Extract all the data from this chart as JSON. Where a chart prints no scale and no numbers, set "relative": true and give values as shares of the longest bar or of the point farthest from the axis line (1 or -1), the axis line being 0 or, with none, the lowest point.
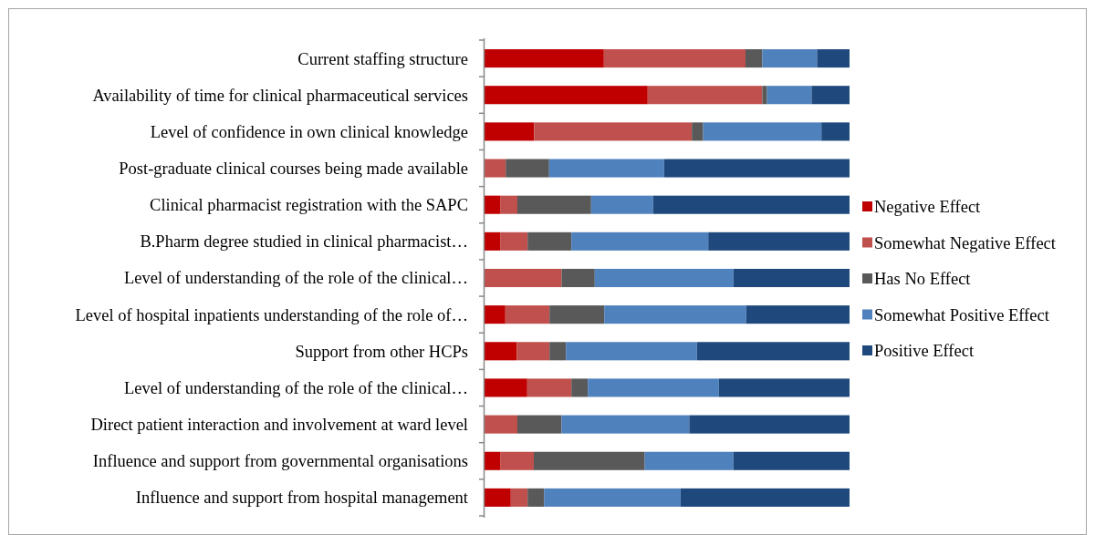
{
  "chart_data": {
    "type": "bar",
    "orientation": "horizontal",
    "stacked": true,
    "relative": true,
    "legend": "right",
    "categories": [
      "Current staffing structure",
      "Availability of time for clinical pharmaceutical services",
      "Level of confidence in own clinical knowledge",
      "Post-graduate clinical courses being made available",
      "Clinical pharmacist registration with the SAPC",
      "B.Pharm degree studied in clinical pharmacist…",
      "Level of understanding of the role of the clinical…",
      "Level of hospital inpatients understanding of the role of…",
      "Support from other HCPs",
      "Level of understanding of the role of the clinical…",
      "Direct patient interaction and involvement at ward level",
      "Influence and support from governmental organisations",
      "Influence and support from hospital management"
    ],
    "series": [
      {
        "name": "Negative Effect",
        "color": "#c00000",
        "values": [
          0.327,
          0.447,
          0.136,
          0,
          0.044,
          0.044,
          0,
          0.057,
          0.088,
          0.117,
          0,
          0.044,
          0.072
        ]
      },
      {
        "name": "Somewhat Negative Effect",
        "color": "#c0504d",
        "values": [
          0.388,
          0.314,
          0.432,
          0.058,
          0.046,
          0.074,
          0.211,
          0.121,
          0.09,
          0.121,
          0.09,
          0.091,
          0.046
        ]
      },
      {
        "name": "Has No Effect",
        "color": "#595959",
        "values": [
          0.046,
          0.013,
          0.031,
          0.119,
          0.202,
          0.12,
          0.091,
          0.15,
          0.045,
          0.045,
          0.121,
          0.304,
          0.045
        ]
      },
      {
        "name": "Somewhat Positive Effect",
        "color": "#4f81bd",
        "values": [
          0.15,
          0.122,
          0.324,
          0.315,
          0.17,
          0.375,
          0.38,
          0.389,
          0.359,
          0.359,
          0.35,
          0.243,
          0.374
        ]
      },
      {
        "name": "Positive Effect",
        "color": "#1f497d",
        "values": [
          0.089,
          0.104,
          0.077,
          0.508,
          0.538,
          0.387,
          0.318,
          0.283,
          0.418,
          0.358,
          0.439,
          0.318,
          0.463
        ]
      }
    ]
  }
}
